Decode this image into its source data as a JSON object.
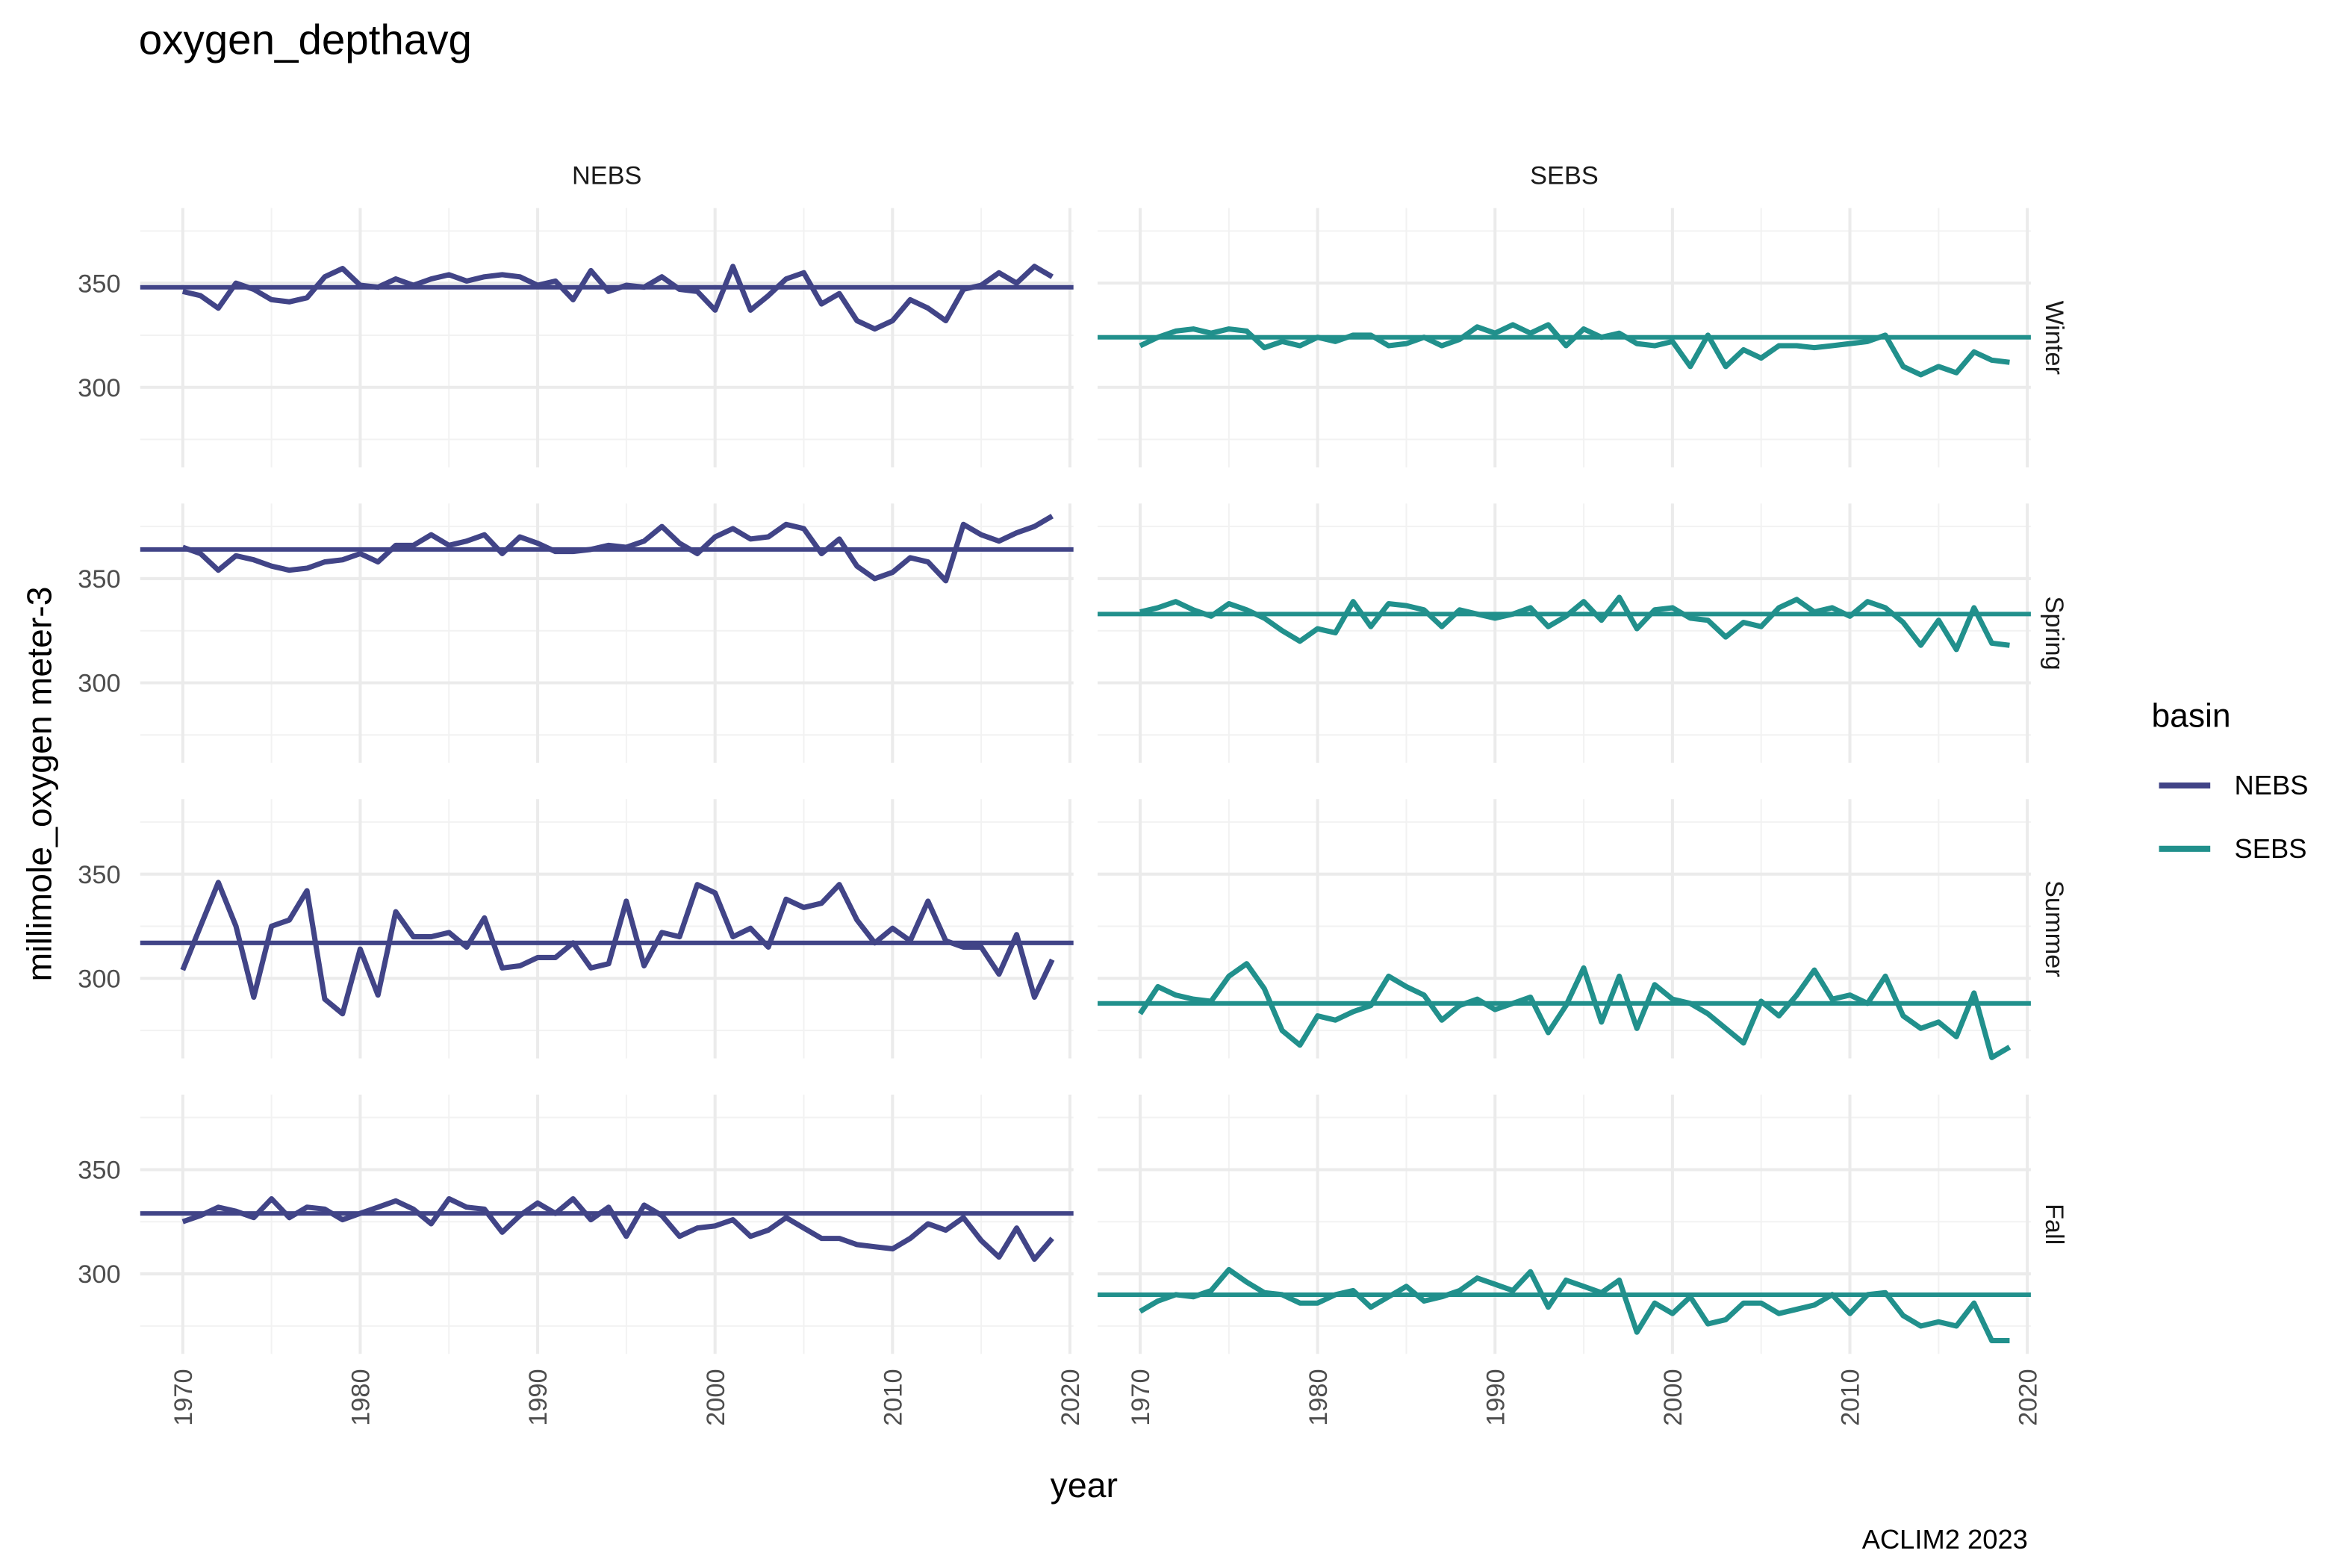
{
  "chart_data": {
    "type": "line",
    "title": "oxygen_depthavg",
    "x_label": "year",
    "y_label": "millimole_oxygen meter-3",
    "caption": "ACLIM2 2023",
    "legend_title": "basin",
    "legend": "right",
    "grid": true,
    "rows": [
      "Winter",
      "Spring",
      "Summer",
      "Fall"
    ],
    "x": [
      1970,
      1971,
      1972,
      1973,
      1974,
      1975,
      1976,
      1977,
      1978,
      1979,
      1980,
      1981,
      1982,
      1983,
      1984,
      1985,
      1986,
      1987,
      1988,
      1989,
      1990,
      1991,
      1992,
      1993,
      1994,
      1995,
      1996,
      1997,
      1998,
      1999,
      2000,
      2001,
      2002,
      2003,
      2004,
      2005,
      2006,
      2007,
      2008,
      2009,
      2010,
      2011,
      2012,
      2013,
      2014,
      2015,
      2016,
      2017,
      2018,
      2019
    ],
    "xlim": [
      1967.6,
      2020.2
    ],
    "xticks": [
      1970,
      1980,
      1990,
      2000,
      2010,
      2020
    ],
    "xminor": [
      1975,
      1985,
      1995,
      2005,
      2015
    ],
    "ylim": [
      261.6,
      386
    ],
    "yticks": [
      300,
      350
    ],
    "yminor": [
      275,
      325,
      375
    ],
    "series": [
      {
        "name": "NEBS",
        "color": "#414487",
        "panels": [
          {
            "mean": 348,
            "values": [
              346,
              344,
              338,
              350,
              347,
              342,
              341,
              343,
              353,
              357,
              349,
              348,
              352,
              349,
              352,
              354,
              351,
              353,
              354,
              353,
              349,
              351,
              342,
              356,
              346,
              349,
              348,
              353,
              347,
              346,
              337,
              358,
              337,
              344,
              352,
              355,
              340,
              345,
              332,
              328,
              332,
              342,
              338,
              332,
              347,
              349,
              355,
              350,
              358,
              353
            ]
          },
          {
            "mean": 364,
            "values": [
              365,
              362,
              354,
              361,
              359,
              356,
              354,
              355,
              358,
              359,
              362,
              358,
              366,
              366,
              371,
              366,
              368,
              371,
              362,
              370,
              367,
              363,
              363,
              364,
              366,
              365,
              368,
              375,
              367,
              362,
              370,
              374,
              369,
              370,
              376,
              374,
              362,
              369,
              356,
              350,
              353,
              360,
              358,
              349,
              376,
              371,
              368,
              372,
              375,
              380
            ]
          },
          {
            "mean": 317,
            "values": [
              304,
              325,
              346,
              325,
              291,
              325,
              328,
              342,
              290,
              283,
              314,
              292,
              332,
              320,
              320,
              322,
              315,
              329,
              305,
              306,
              310,
              310,
              317,
              305,
              307,
              337,
              306,
              322,
              320,
              345,
              341,
              320,
              324,
              315,
              338,
              334,
              336,
              345,
              328,
              317,
              324,
              318,
              337,
              318,
              315,
              315,
              302,
              321,
              291,
              309
            ]
          },
          {
            "mean": 329,
            "values": [
              325,
              328,
              332,
              330,
              327,
              336,
              327,
              332,
              331,
              326,
              329,
              332,
              335,
              331,
              324,
              336,
              332,
              331,
              320,
              328,
              334,
              329,
              336,
              326,
              332,
              318,
              333,
              328,
              318,
              322,
              323,
              326,
              318,
              321,
              327,
              322,
              317,
              317,
              314,
              313,
              312,
              317,
              324,
              321,
              327,
              316,
              308,
              322,
              307,
              317
            ]
          }
        ]
      },
      {
        "name": "SEBS",
        "color": "#21908C",
        "panels": [
          {
            "mean": 324,
            "values": [
              320,
              324,
              327,
              328,
              326,
              328,
              327,
              319,
              322,
              320,
              324,
              322,
              325,
              325,
              320,
              321,
              324,
              320,
              323,
              329,
              326,
              330,
              326,
              330,
              320,
              328,
              324,
              326,
              321,
              320,
              322,
              310,
              325,
              310,
              318,
              314,
              320,
              320,
              319,
              320,
              321,
              322,
              325,
              310,
              306,
              310,
              307,
              317,
              313,
              312
            ]
          },
          {
            "mean": 333,
            "values": [
              334,
              336,
              339,
              335,
              332,
              338,
              335,
              331,
              325,
              320,
              326,
              324,
              339,
              327,
              338,
              337,
              335,
              327,
              335,
              333,
              331,
              333,
              336,
              327,
              332,
              339,
              330,
              341,
              326,
              335,
              336,
              331,
              330,
              322,
              329,
              327,
              336,
              340,
              334,
              336,
              332,
              339,
              336,
              329,
              318,
              330,
              316,
              336,
              319,
              318
            ]
          },
          {
            "mean": 288,
            "values": [
              283,
              296,
              292,
              290,
              289,
              301,
              307,
              295,
              275,
              268,
              282,
              280,
              284,
              287,
              301,
              296,
              292,
              280,
              287,
              290,
              285,
              288,
              291,
              274,
              287,
              305,
              279,
              301,
              276,
              297,
              290,
              288,
              283,
              276,
              269,
              289,
              282,
              292,
              304,
              290,
              292,
              288,
              301,
              282,
              276,
              279,
              272,
              293,
              262,
              267
            ]
          },
          {
            "mean": 290,
            "values": [
              282,
              287,
              290,
              289,
              292,
              302,
              296,
              291,
              290,
              286,
              286,
              290,
              292,
              284,
              289,
              294,
              287,
              289,
              292,
              298,
              295,
              292,
              301,
              284,
              297,
              294,
              291,
              297,
              272,
              286,
              281,
              289,
              276,
              278,
              286,
              286,
              281,
              283,
              285,
              290,
              281,
              290,
              291,
              280,
              275,
              277,
              275,
              286,
              268,
              268
            ]
          }
        ]
      }
    ]
  }
}
